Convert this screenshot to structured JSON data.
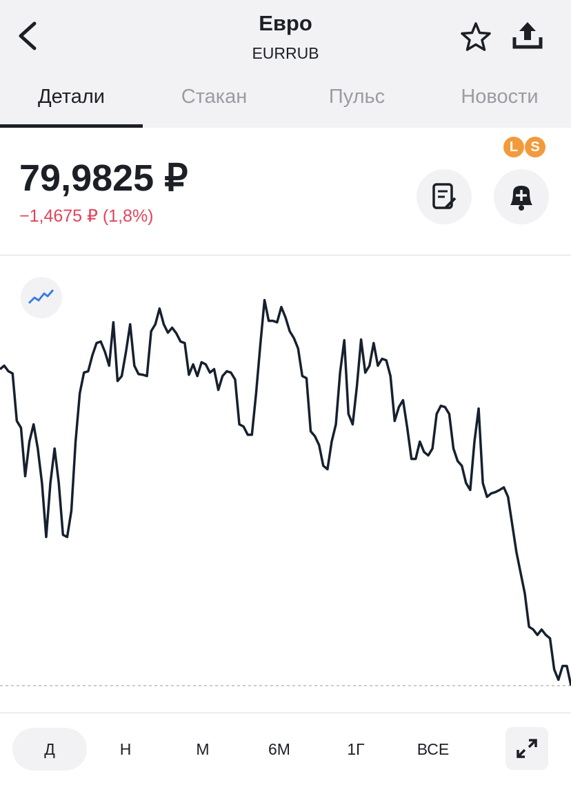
{
  "header": {
    "title": "Евро",
    "subtitle": "EURRUB"
  },
  "tabs": [
    "Детали",
    "Стакан",
    "Пульс",
    "Новости"
  ],
  "badges": [
    "L",
    "S"
  ],
  "price": "79,9825 ₽",
  "change": "−1,4675 ₽ (1,8%)",
  "chart_data": {
    "type": "line",
    "color": "#16202e",
    "ylim": [
      79.95,
      81.8
    ],
    "values": [
      81.446,
      81.462,
      81.436,
      81.426,
      81.206,
      81.174,
      80.95,
      81.11,
      81.19,
      81.078,
      80.918,
      80.668,
      80.918,
      81.078,
      80.918,
      80.678,
      80.668,
      80.79,
      81.11,
      81.334,
      81.43,
      81.436,
      81.51,
      81.567,
      81.574,
      81.526,
      81.462,
      81.663,
      81.391,
      81.414,
      81.526,
      81.654,
      81.462,
      81.423,
      81.42,
      81.414,
      81.622,
      81.654,
      81.727,
      81.654,
      81.615,
      81.638,
      81.612,
      81.574,
      81.567,
      81.42,
      81.468,
      81.414,
      81.478,
      81.468,
      81.43,
      81.446,
      81.35,
      81.414,
      81.436,
      81.43,
      81.398,
      81.19,
      81.18,
      81.142,
      81.142,
      81.334,
      81.558,
      81.766,
      81.67,
      81.67,
      81.663,
      81.734,
      81.686,
      81.622,
      81.59,
      81.542,
      81.414,
      81.404,
      81.158,
      81.135,
      81.094,
      80.998,
      80.982,
      81.11,
      81.19,
      81.43,
      81.58,
      81.238,
      81.19,
      81.366,
      81.583,
      81.43,
      81.462,
      81.567,
      81.462,
      81.494,
      81.487,
      81.414,
      81.206,
      81.27,
      81.302,
      81.174,
      81.03,
      81.03,
      81.11,
      81.062,
      81.046,
      81.078,
      81.238,
      81.276,
      81.27,
      81.238,
      81.078,
      81.02,
      80.998,
      80.918,
      80.886,
      81.11,
      81.263,
      80.918,
      80.854,
      80.87,
      80.876,
      80.886,
      80.898,
      80.854,
      80.726,
      80.598,
      80.502,
      80.406,
      80.252,
      80.239,
      80.214,
      80.239,
      80.214,
      80.198,
      80.054,
      80.006,
      80.07,
      80.07,
      79.98
    ]
  },
  "periods": [
    "Д",
    "Н",
    "М",
    "6М",
    "1Г",
    "ВСЕ"
  ]
}
